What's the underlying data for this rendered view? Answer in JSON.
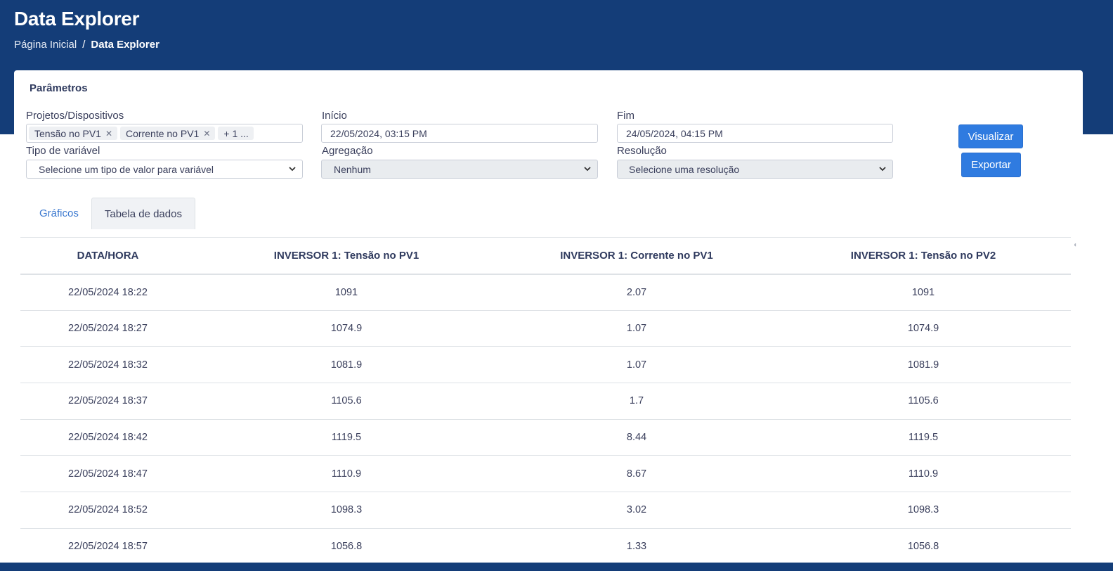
{
  "header": {
    "title": "Data Explorer",
    "breadcrumb": {
      "home": "Página Inicial",
      "separator": "/",
      "current": "Data Explorer"
    }
  },
  "params": {
    "title": "Parâmetros",
    "devices": {
      "label": "Projetos/Dispositivos",
      "chips": [
        "Tensão no PV1",
        "Corrente no PV1"
      ],
      "more": "+ 1 ..."
    },
    "start": {
      "label": "Início",
      "value": "22/05/2024, 03:15 PM"
    },
    "end": {
      "label": "Fim",
      "value": "24/05/2024, 04:15 PM"
    },
    "variable_type": {
      "label": "Tipo de variável",
      "value": "Selecione um tipo de valor para variável"
    },
    "aggregation": {
      "label": "Agregação",
      "value": "Nenhum"
    },
    "resolution": {
      "label": "Resolução",
      "value": "Selecione uma resolução"
    },
    "visualize_label": "Visualizar",
    "export_label": "Exportar"
  },
  "tabs": [
    {
      "label": "Gráficos",
      "active": false
    },
    {
      "label": "Tabela de dados",
      "active": true
    }
  ],
  "table": {
    "headers": [
      "DATA/HORA",
      "INVERSOR 1: Tensão no PV1",
      "INVERSOR 1: Corrente no PV1",
      "INVERSOR 1: Tensão no PV2"
    ],
    "rows": [
      [
        "22/05/2024 18:22",
        "1091",
        "2.07",
        "1091"
      ],
      [
        "22/05/2024 18:27",
        "1074.9",
        "1.07",
        "1074.9"
      ],
      [
        "22/05/2024 18:32",
        "1081.9",
        "1.07",
        "1081.9"
      ],
      [
        "22/05/2024 18:37",
        "1105.6",
        "1.7",
        "1105.6"
      ],
      [
        "22/05/2024 18:42",
        "1119.5",
        "8.44",
        "1119.5"
      ],
      [
        "22/05/2024 18:47",
        "1110.9",
        "8.67",
        "1110.9"
      ],
      [
        "22/05/2024 18:52",
        "1098.3",
        "3.02",
        "1098.3"
      ],
      [
        "22/05/2024 18:57",
        "1056.8",
        "1.33",
        "1056.8"
      ]
    ]
  },
  "colors": {
    "header_bg": "#143d78",
    "button_bg": "#2f7be0",
    "tab_link": "#3d7ad0"
  }
}
